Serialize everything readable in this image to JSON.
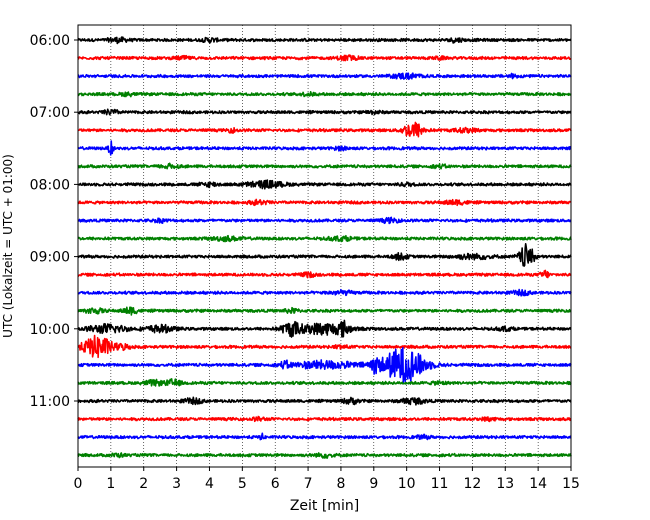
{
  "chart_data": {
    "type": "line",
    "title": "",
    "xlabel": "Zeit  [min]",
    "ylabel": "UTC (Lokalzeit = UTC + 01:00)",
    "xlim": [
      0,
      15
    ],
    "x_ticks": [
      "0",
      "1",
      "2",
      "3",
      "4",
      "5",
      "6",
      "7",
      "8",
      "9",
      "10",
      "11",
      "12",
      "13",
      "14",
      "15"
    ],
    "y_tick_labels": [
      "06:00",
      "07:00",
      "08:00",
      "09:00",
      "10:00",
      "11:00"
    ],
    "trace_interval_minutes": 15,
    "first_trace_start": "06:00",
    "last_trace_start": "11:45",
    "grid": "vertical-dotted",
    "colors": [
      "#000000",
      "#ff0000",
      "#0000ff",
      "#008000"
    ],
    "series": [
      {
        "start": "06:00",
        "color": "#000000",
        "events": [
          {
            "t": 1.2,
            "amp": 0.25,
            "dur": 0.4
          },
          {
            "t": 4.0,
            "amp": 0.2,
            "dur": 0.3
          },
          {
            "t": 11.5,
            "amp": 0.2,
            "dur": 0.3
          }
        ]
      },
      {
        "start": "06:15",
        "color": "#ff0000",
        "events": [
          {
            "t": 3.2,
            "amp": 0.15,
            "dur": 0.3
          },
          {
            "t": 8.2,
            "amp": 0.25,
            "dur": 0.4
          },
          {
            "t": 11.0,
            "amp": 0.15,
            "dur": 0.2
          }
        ]
      },
      {
        "start": "06:30",
        "color": "#0000ff",
        "events": [
          {
            "t": 10.0,
            "amp": 0.25,
            "dur": 0.6
          },
          {
            "t": 13.2,
            "amp": 0.15,
            "dur": 0.3
          }
        ]
      },
      {
        "start": "06:45",
        "color": "#008000",
        "events": [
          {
            "t": 1.5,
            "amp": 0.15,
            "dur": 0.3
          },
          {
            "t": 7.0,
            "amp": 0.15,
            "dur": 0.3
          }
        ]
      },
      {
        "start": "07:00",
        "color": "#000000",
        "events": [
          {
            "t": 1.0,
            "amp": 0.25,
            "dur": 0.3
          },
          {
            "t": 9.0,
            "amp": 0.15,
            "dur": 0.3
          }
        ]
      },
      {
        "start": "07:15",
        "color": "#ff0000",
        "events": [
          {
            "t": 4.7,
            "amp": 0.2,
            "dur": 0.2
          },
          {
            "t": 10.2,
            "amp": 0.9,
            "dur": 0.4
          },
          {
            "t": 11.8,
            "amp": 0.2,
            "dur": 0.5
          }
        ]
      },
      {
        "start": "07:30",
        "color": "#0000ff",
        "events": [
          {
            "t": 1.0,
            "amp": 0.7,
            "dur": 0.1
          },
          {
            "t": 8.0,
            "amp": 0.15,
            "dur": 0.3
          }
        ]
      },
      {
        "start": "07:45",
        "color": "#008000",
        "events": [
          {
            "t": 2.8,
            "amp": 0.2,
            "dur": 0.4
          },
          {
            "t": 11.0,
            "amp": 0.15,
            "dur": 0.3
          }
        ]
      },
      {
        "start": "08:00",
        "color": "#000000",
        "events": [
          {
            "t": 4.0,
            "amp": 0.2,
            "dur": 0.4
          },
          {
            "t": 5.7,
            "amp": 0.35,
            "dur": 0.8
          },
          {
            "t": 10.0,
            "amp": 0.15,
            "dur": 0.3
          }
        ]
      },
      {
        "start": "08:15",
        "color": "#ff0000",
        "events": [
          {
            "t": 5.5,
            "amp": 0.2,
            "dur": 0.4
          },
          {
            "t": 11.5,
            "amp": 0.2,
            "dur": 0.5
          }
        ]
      },
      {
        "start": "08:30",
        "color": "#0000ff",
        "events": [
          {
            "t": 2.5,
            "amp": 0.15,
            "dur": 0.3
          },
          {
            "t": 9.5,
            "amp": 0.2,
            "dur": 0.4
          }
        ]
      },
      {
        "start": "08:45",
        "color": "#008000",
        "events": [
          {
            "t": 4.5,
            "amp": 0.2,
            "dur": 0.6
          },
          {
            "t": 8.0,
            "amp": 0.2,
            "dur": 0.5
          }
        ]
      },
      {
        "start": "09:00",
        "color": "#000000",
        "events": [
          {
            "t": 9.8,
            "amp": 0.3,
            "dur": 0.3
          },
          {
            "t": 12.0,
            "amp": 0.25,
            "dur": 0.8
          },
          {
            "t": 13.65,
            "amp": 1.3,
            "dur": 0.3
          }
        ]
      },
      {
        "start": "09:15",
        "color": "#ff0000",
        "events": [
          {
            "t": 7.0,
            "amp": 0.2,
            "dur": 0.3
          },
          {
            "t": 14.2,
            "amp": 0.5,
            "dur": 0.15
          }
        ]
      },
      {
        "start": "09:30",
        "color": "#0000ff",
        "events": [
          {
            "t": 8.0,
            "amp": 0.2,
            "dur": 0.5
          },
          {
            "t": 13.5,
            "amp": 0.2,
            "dur": 0.4
          }
        ]
      },
      {
        "start": "09:45",
        "color": "#008000",
        "events": [
          {
            "t": 0.5,
            "amp": 0.25,
            "dur": 0.4
          },
          {
            "t": 1.6,
            "amp": 0.35,
            "dur": 0.3
          },
          {
            "t": 6.5,
            "amp": 0.2,
            "dur": 0.3
          }
        ]
      },
      {
        "start": "10:00",
        "color": "#000000",
        "events": [
          {
            "t": 0.9,
            "amp": 0.45,
            "dur": 0.8
          },
          {
            "t": 2.5,
            "amp": 0.35,
            "dur": 0.6
          },
          {
            "t": 6.5,
            "amp": 0.7,
            "dur": 0.4
          },
          {
            "t": 7.5,
            "amp": 0.6,
            "dur": 1.0
          },
          {
            "t": 8.1,
            "amp": 0.6,
            "dur": 0.2
          },
          {
            "t": 13.0,
            "amp": 0.2,
            "dur": 0.3
          }
        ]
      },
      {
        "start": "10:15",
        "color": "#ff0000",
        "events": [
          {
            "t": 0.6,
            "amp": 1.2,
            "dur": 0.6
          },
          {
            "t": 1.4,
            "amp": 0.25,
            "dur": 0.3
          },
          {
            "t": 8.0,
            "amp": 0.15,
            "dur": 0.3
          }
        ]
      },
      {
        "start": "10:30",
        "color": "#0000ff",
        "events": [
          {
            "t": 6.3,
            "amp": 0.3,
            "dur": 0.2
          },
          {
            "t": 7.5,
            "amp": 0.4,
            "dur": 1.4
          },
          {
            "t": 9.0,
            "amp": 0.6,
            "dur": 0.2
          },
          {
            "t": 9.9,
            "amp": 1.9,
            "dur": 0.9
          }
        ]
      },
      {
        "start": "10:45",
        "color": "#008000",
        "events": [
          {
            "t": 2.3,
            "amp": 0.25,
            "dur": 0.4
          },
          {
            "t": 2.9,
            "amp": 0.35,
            "dur": 0.3
          },
          {
            "t": 11.0,
            "amp": 0.15,
            "dur": 0.3
          }
        ]
      },
      {
        "start": "11:00",
        "color": "#000000",
        "events": [
          {
            "t": 3.5,
            "amp": 0.25,
            "dur": 0.4
          },
          {
            "t": 8.3,
            "amp": 0.3,
            "dur": 0.3
          },
          {
            "t": 10.2,
            "amp": 0.3,
            "dur": 0.5
          }
        ]
      },
      {
        "start": "11:15",
        "color": "#ff0000",
        "events": [
          {
            "t": 5.5,
            "amp": 0.15,
            "dur": 0.3
          },
          {
            "t": 12.5,
            "amp": 0.15,
            "dur": 0.3
          }
        ]
      },
      {
        "start": "11:30",
        "color": "#0000ff",
        "events": [
          {
            "t": 5.6,
            "amp": 0.3,
            "dur": 0.1
          },
          {
            "t": 10.5,
            "amp": 0.15,
            "dur": 0.3
          }
        ]
      },
      {
        "start": "11:45",
        "color": "#008000",
        "events": [
          {
            "t": 1.2,
            "amp": 0.15,
            "dur": 0.3
          },
          {
            "t": 7.5,
            "amp": 0.2,
            "dur": 0.4
          }
        ]
      }
    ]
  }
}
